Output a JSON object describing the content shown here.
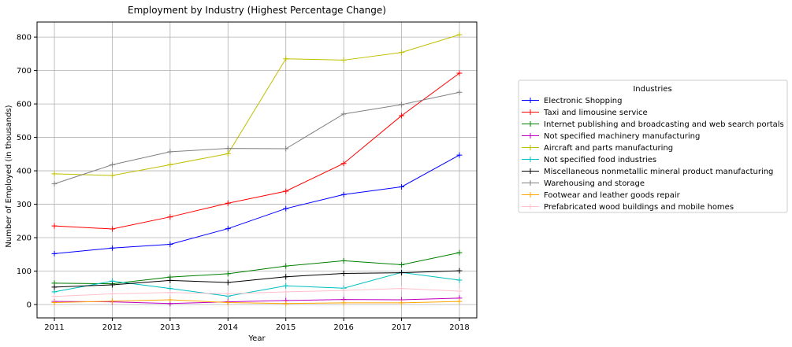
{
  "chart_data": {
    "type": "line",
    "title": "Employment by Industry (Highest Percentage Change)",
    "xlabel": "Year",
    "ylabel": "Number of Employed (in thousands)",
    "x": [
      2011,
      2012,
      2013,
      2014,
      2015,
      2016,
      2017,
      2018
    ],
    "xlim": [
      2010.7,
      2018.3
    ],
    "ylim": [
      -40,
      845
    ],
    "yticks": [
      0,
      100,
      200,
      300,
      400,
      500,
      600,
      700,
      800
    ],
    "grid": true,
    "legend": {
      "title": "Industries",
      "placement": "right"
    },
    "series": [
      {
        "name": "Electronic Shopping",
        "color": "#0000ff",
        "values": [
          152,
          169,
          180,
          227,
          287,
          329,
          352,
          447
        ]
      },
      {
        "name": "Taxi and limousine service",
        "color": "#ff0000",
        "values": [
          235,
          226,
          262,
          303,
          339,
          422,
          565,
          692
        ]
      },
      {
        "name": "Internet publishing and broadcasting and web search portals",
        "color": "#008000",
        "values": [
          64,
          62,
          82,
          92,
          115,
          131,
          119,
          155
        ]
      },
      {
        "name": "Not specified machinery manufacturing",
        "color": "#bf00bf",
        "values": [
          9,
          8,
          3,
          8,
          12,
          15,
          14,
          19
        ]
      },
      {
        "name": "Aircraft and parts manufacturing",
        "color": "#bfbf00",
        "values": [
          391,
          386,
          418,
          451,
          735,
          731,
          754,
          807
        ]
      },
      {
        "name": "Not specified food industries",
        "color": "#00bfbf",
        "values": [
          38,
          70,
          48,
          25,
          56,
          49,
          96,
          73
        ]
      },
      {
        "name": "Miscellaneous nonmetallic mineral product manufacturing",
        "color": "#000000",
        "values": [
          52,
          59,
          72,
          66,
          83,
          93,
          95,
          101
        ]
      },
      {
        "name": "Warehousing and storage",
        "color": "#808080",
        "values": [
          361,
          418,
          457,
          467,
          466,
          570,
          598,
          635
        ]
      },
      {
        "name": "Footwear and leather goods repair",
        "color": "#ffa500",
        "values": [
          6,
          10,
          14,
          6,
          3,
          5,
          5,
          9
        ]
      },
      {
        "name": "Prefabricated wood buildings and mobile homes",
        "color": "#ffc0cb",
        "values": [
          24,
          32,
          36,
          32,
          38,
          42,
          48,
          40
        ]
      }
    ]
  }
}
